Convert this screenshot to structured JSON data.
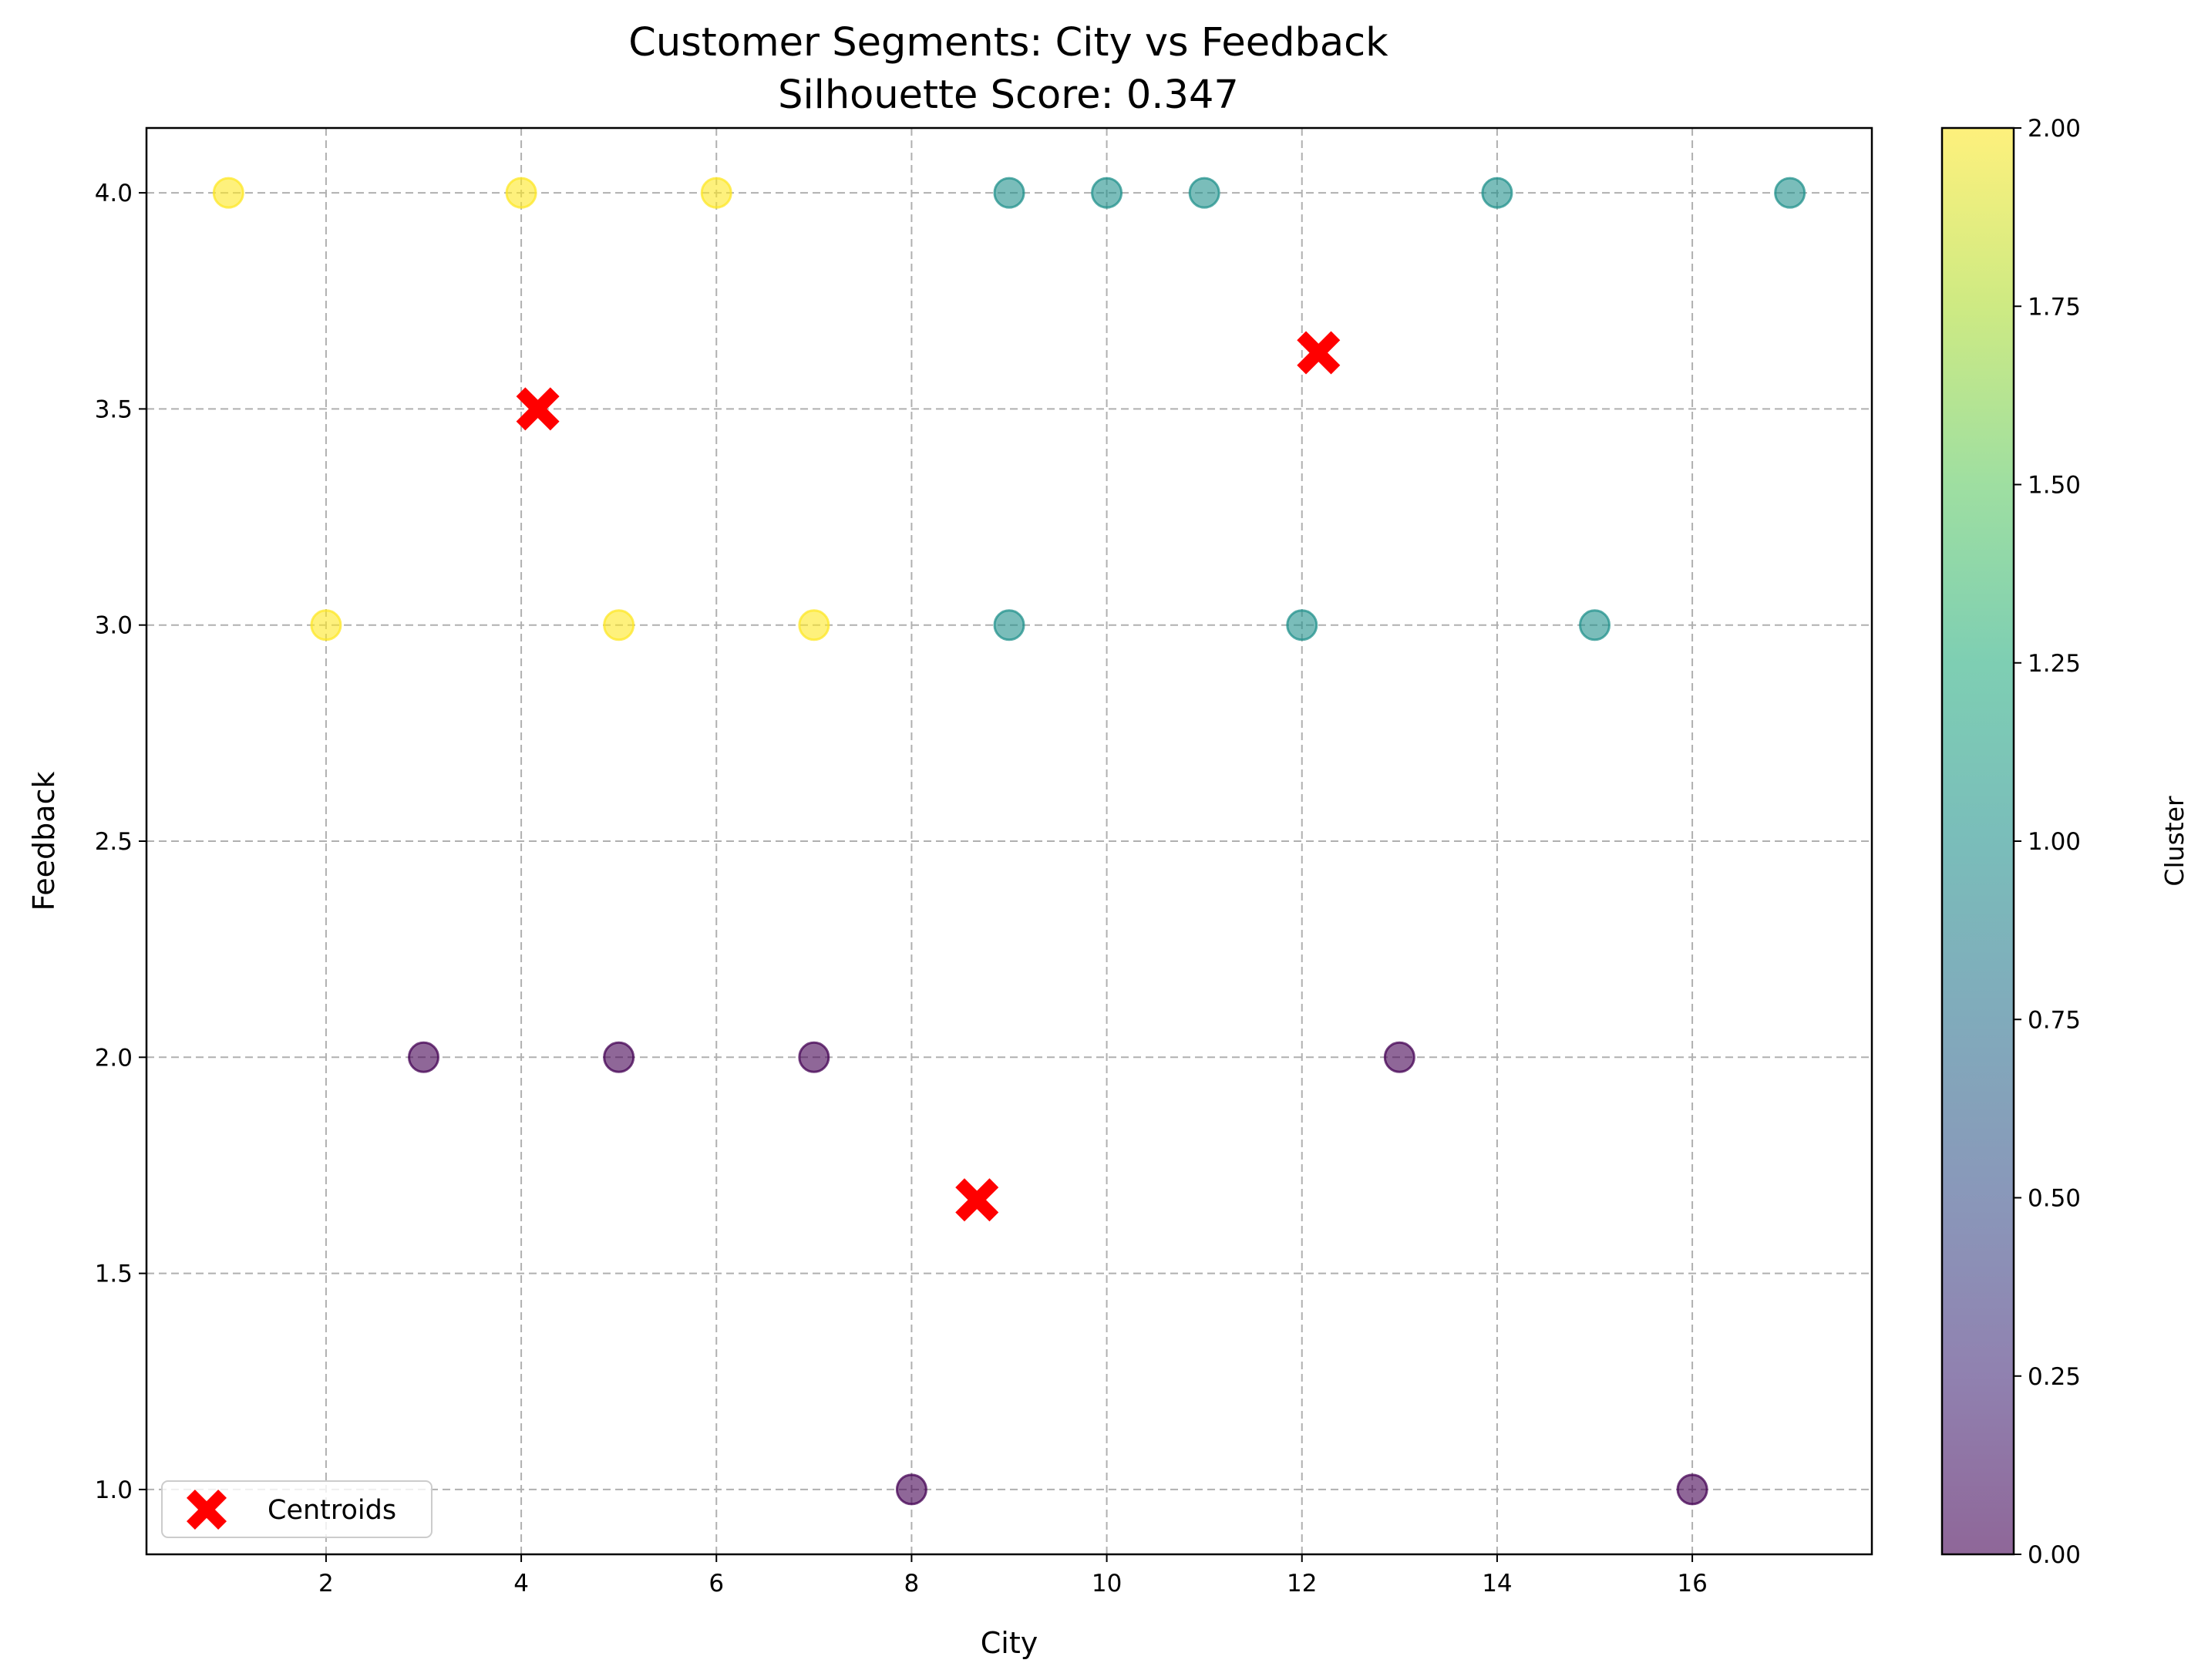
{
  "chart_data": {
    "type": "scatter",
    "title": "Customer Segments: City vs Feedback",
    "subtitle": "Silhouette Score: 0.347",
    "xlabel": "City",
    "ylabel": "Feedback",
    "xlim": [
      0.16,
      17.84
    ],
    "ylim": [
      0.85,
      4.15
    ],
    "xticks": [
      2,
      4,
      6,
      8,
      10,
      12,
      14,
      16
    ],
    "yticks": [
      1.0,
      1.5,
      2.0,
      2.5,
      3.0,
      3.5,
      4.0
    ],
    "xtick_labels": [
      "2",
      "4",
      "6",
      "8",
      "10",
      "12",
      "14",
      "16"
    ],
    "ytick_labels": [
      "1.0",
      "1.5",
      "2.0",
      "2.5",
      "3.0",
      "3.5",
      "4.0"
    ],
    "grid": true,
    "grid_style": "dashed",
    "points": [
      {
        "x": 1,
        "y": 4,
        "cluster": 2
      },
      {
        "x": 4,
        "y": 4,
        "cluster": 2
      },
      {
        "x": 6,
        "y": 4,
        "cluster": 2
      },
      {
        "x": 2,
        "y": 3,
        "cluster": 2
      },
      {
        "x": 5,
        "y": 3,
        "cluster": 2
      },
      {
        "x": 7,
        "y": 3,
        "cluster": 2
      },
      {
        "x": 9,
        "y": 4,
        "cluster": 1
      },
      {
        "x": 10,
        "y": 4,
        "cluster": 1
      },
      {
        "x": 11,
        "y": 4,
        "cluster": 1
      },
      {
        "x": 14,
        "y": 4,
        "cluster": 1
      },
      {
        "x": 17,
        "y": 4,
        "cluster": 1
      },
      {
        "x": 9,
        "y": 3,
        "cluster": 1
      },
      {
        "x": 12,
        "y": 3,
        "cluster": 1
      },
      {
        "x": 15,
        "y": 3,
        "cluster": 1
      },
      {
        "x": 3,
        "y": 2,
        "cluster": 0
      },
      {
        "x": 5,
        "y": 2,
        "cluster": 0
      },
      {
        "x": 7,
        "y": 2,
        "cluster": 0
      },
      {
        "x": 13,
        "y": 2,
        "cluster": 0
      },
      {
        "x": 8,
        "y": 1,
        "cluster": 0
      },
      {
        "x": 16,
        "y": 1,
        "cluster": 0
      }
    ],
    "cluster_colors": {
      "0": "#440154",
      "1": "#21918c",
      "2": "#fde725"
    },
    "point_alpha": 0.6,
    "centroids": [
      {
        "x": 4.17,
        "y": 3.5
      },
      {
        "x": 12.17,
        "y": 3.63
      },
      {
        "x": 8.67,
        "y": 1.67
      }
    ],
    "centroid_color": "#ff0000",
    "centroid_marker": "X",
    "legend": {
      "entries": [
        "Centroids"
      ],
      "position": "lower-left"
    },
    "colorbar": {
      "label": "Cluster",
      "min": 0.0,
      "max": 2.0,
      "ticks": [
        0.0,
        0.25,
        0.5,
        0.75,
        1.0,
        1.25,
        1.5,
        1.75,
        2.0
      ],
      "tick_labels": [
        "0.00",
        "0.25",
        "0.50",
        "0.75",
        "1.00",
        "1.25",
        "1.50",
        "1.75",
        "2.00"
      ],
      "colormap": "viridis",
      "alpha": 0.6
    }
  }
}
